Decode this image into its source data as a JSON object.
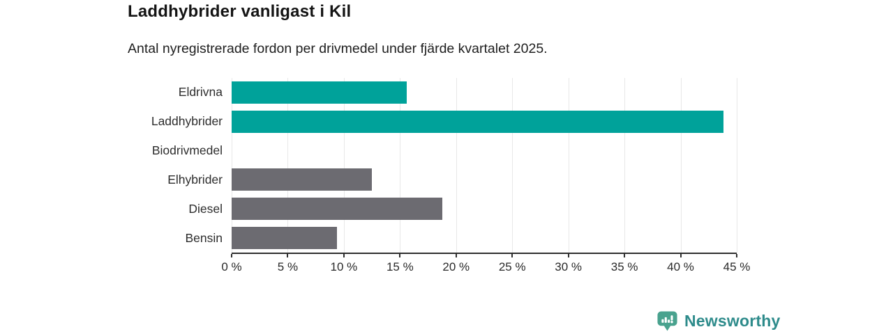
{
  "header": {
    "title": "Laddhybrider vanligast i Kil",
    "subtitle": "Antal nyregistrerade fordon per drivmedel under fjärde kvartalet 2025."
  },
  "chart_data": {
    "type": "bar",
    "orientation": "horizontal",
    "title": "Laddhybrider vanligast i Kil",
    "subtitle": "Antal nyregistrerade fordon per drivmedel under fjärde kvartalet 2025.",
    "categories": [
      "Eldrivna",
      "Laddhybrider",
      "Biodrivmedel",
      "Elhybrider",
      "Diesel",
      "Bensin"
    ],
    "values": [
      15.6,
      43.8,
      0,
      12.5,
      18.8,
      9.4
    ],
    "value_unit": "%",
    "xlim": [
      0,
      45
    ],
    "xticks": [
      0,
      5,
      10,
      15,
      20,
      25,
      30,
      35,
      40,
      45
    ],
    "xtick_label_format": "{v} %",
    "grid": true,
    "legend": false,
    "colors": {
      "bar_colors": [
        "#00a29a",
        "#00a29a",
        "#6c6b71",
        "#6c6b71",
        "#6c6b71",
        "#6c6b71"
      ],
      "highlight": "#00a29a",
      "default": "#6c6b71",
      "gridline": "#e8e8e8",
      "axis": "#2e2e2e"
    }
  },
  "footer": {
    "brand": "Newsworthy",
    "brand_color": "#2e8b8b",
    "icon_color": "#49a28e"
  }
}
